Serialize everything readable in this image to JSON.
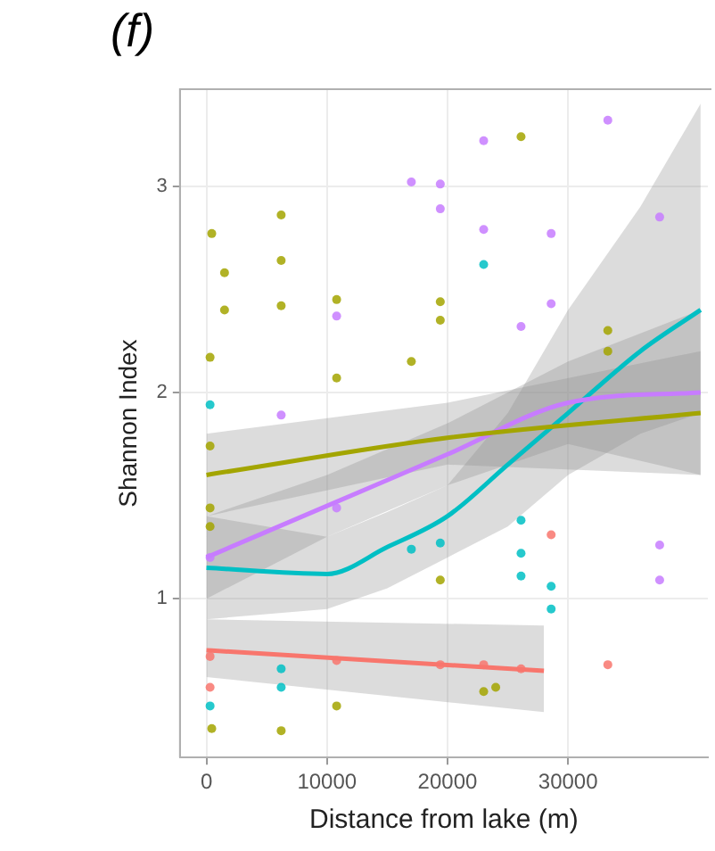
{
  "chart_data": {
    "type": "scatter",
    "title": "(f)",
    "xlabel": "Distance from lake (m)",
    "ylabel": "Shannon Index",
    "xlim": [
      -2200,
      41600
    ],
    "ylim": [
      0.23,
      3.47
    ],
    "xticks": [
      0,
      10000,
      20000,
      30000
    ],
    "yticks": [
      1,
      2,
      3
    ],
    "grid": true,
    "legend": false,
    "marker": "circle",
    "series": [
      {
        "color": "#a3a500",
        "x": [
          440,
          6200,
          1500,
          6200,
          1500,
          6200,
          10800,
          300,
          10800,
          17000,
          19400,
          19400,
          26100,
          33300,
          33300,
          300,
          300,
          300,
          440,
          6200,
          10800,
          19400,
          23000,
          24000
        ],
        "values": [
          2.77,
          2.86,
          2.58,
          2.64,
          2.4,
          2.42,
          2.45,
          2.17,
          2.07,
          2.15,
          2.44,
          2.35,
          3.24,
          2.3,
          2.2,
          1.74,
          1.44,
          1.35,
          0.37,
          0.36,
          0.48,
          1.09,
          0.55,
          0.57
        ]
      },
      {
        "color": "#c77cff",
        "x": [
          10800,
          17000,
          19400,
          19400,
          23000,
          23000,
          28600,
          28600,
          26100,
          33300,
          37600,
          6200,
          300,
          10800,
          37600,
          37600
        ],
        "values": [
          2.37,
          3.02,
          3.01,
          2.89,
          3.22,
          2.79,
          2.77,
          2.43,
          2.32,
          3.32,
          2.85,
          1.89,
          1.2,
          1.44,
          1.26,
          1.09
        ]
      },
      {
        "color": "#00bfc4",
        "x": [
          23000,
          300,
          300,
          6200,
          6200,
          17000,
          19400,
          26100,
          26100,
          26100,
          28600,
          28600
        ],
        "values": [
          2.62,
          1.94,
          0.48,
          0.57,
          0.66,
          1.24,
          1.27,
          1.38,
          1.22,
          1.11,
          1.06,
          0.95
        ]
      },
      {
        "color": "#f8766d",
        "x": [
          300,
          300,
          10800,
          19400,
          23000,
          26100,
          28600,
          33300
        ],
        "values": [
          0.72,
          0.57,
          0.7,
          0.68,
          0.68,
          0.66,
          1.31,
          0.68
        ]
      },
      {
        "type": "line",
        "marker": "none",
        "color": "#a3a500",
        "x": [
          0,
          20000,
          41000
        ],
        "values": [
          1.6,
          1.78,
          1.9
        ],
        "lower": [
          1.4,
          1.65,
          1.6
        ],
        "upper": [
          1.8,
          1.95,
          2.2
        ]
      },
      {
        "type": "line",
        "marker": "none",
        "color": "#c77cff",
        "x": [
          0,
          10000,
          20000,
          30000,
          41000
        ],
        "values": [
          1.2,
          1.45,
          1.7,
          1.95,
          2.0
        ],
        "lower": [
          1.0,
          1.3,
          1.55,
          1.75,
          1.6
        ],
        "upper": [
          1.4,
          1.6,
          1.85,
          2.15,
          2.4
        ]
      },
      {
        "type": "line",
        "marker": "none",
        "color": "#00bfc4",
        "x": [
          0,
          10000,
          15000,
          20000,
          25000,
          30000,
          36000,
          41000
        ],
        "values": [
          1.15,
          1.12,
          1.25,
          1.4,
          1.65,
          1.9,
          2.2,
          2.4
        ],
        "lower": [
          0.9,
          0.95,
          1.05,
          1.2,
          1.35,
          1.6,
          1.8,
          1.9
        ],
        "upper": [
          1.4,
          1.3,
          1.42,
          1.55,
          1.9,
          2.4,
          2.9,
          3.4
        ]
      },
      {
        "type": "line",
        "marker": "none",
        "color": "#f8766d",
        "x": [
          0,
          28000
        ],
        "values": [
          0.75,
          0.65
        ],
        "lower": [
          0.62,
          0.45
        ],
        "upper": [
          0.9,
          0.87
        ]
      }
    ]
  }
}
